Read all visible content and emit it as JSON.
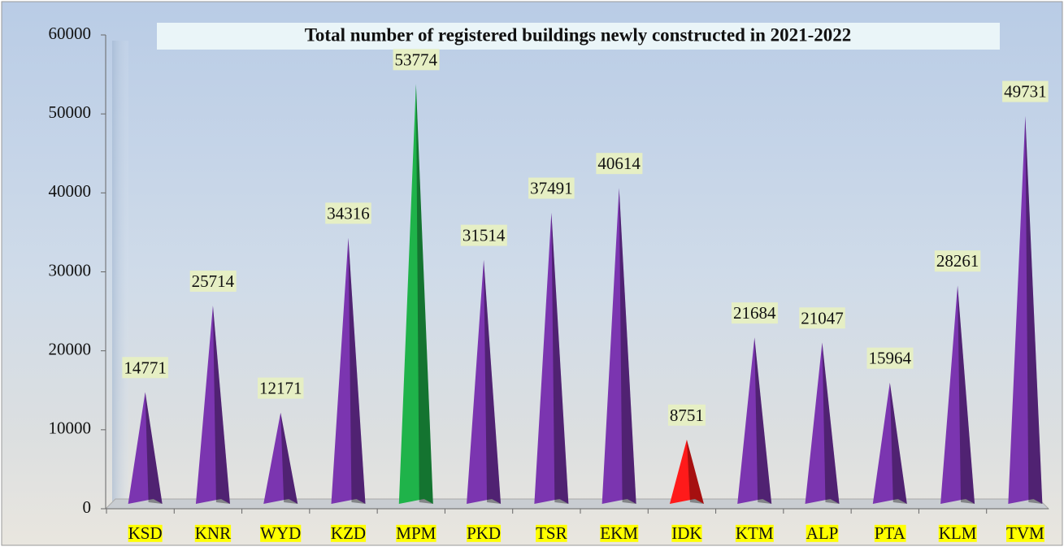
{
  "chart_data": {
    "type": "bar",
    "title": "Total number of registered buildings newly constructed in 2021-2022",
    "categories": [
      "KSD",
      "KNR",
      "WYD",
      "KZD",
      "MPM",
      "PKD",
      "TSR",
      "EKM",
      "IDK",
      "KTM",
      "ALP",
      "PTA",
      "KLM",
      "TVM"
    ],
    "values": [
      14771,
      25714,
      12171,
      34316,
      53774,
      31514,
      37491,
      40614,
      8751,
      21684,
      21047,
      15964,
      28261,
      49731
    ],
    "colors": [
      "#7b35b0",
      "#7b35b0",
      "#7b35b0",
      "#7b35b0",
      "#1fb34a",
      "#7b35b0",
      "#7b35b0",
      "#7b35b0",
      "#ff1a1a",
      "#7b35b0",
      "#7b35b0",
      "#7b35b0",
      "#7b35b0",
      "#7b35b0"
    ],
    "ylim": [
      0,
      60000
    ],
    "yticks": [
      0,
      10000,
      20000,
      30000,
      40000,
      50000,
      60000
    ],
    "grid": false
  }
}
